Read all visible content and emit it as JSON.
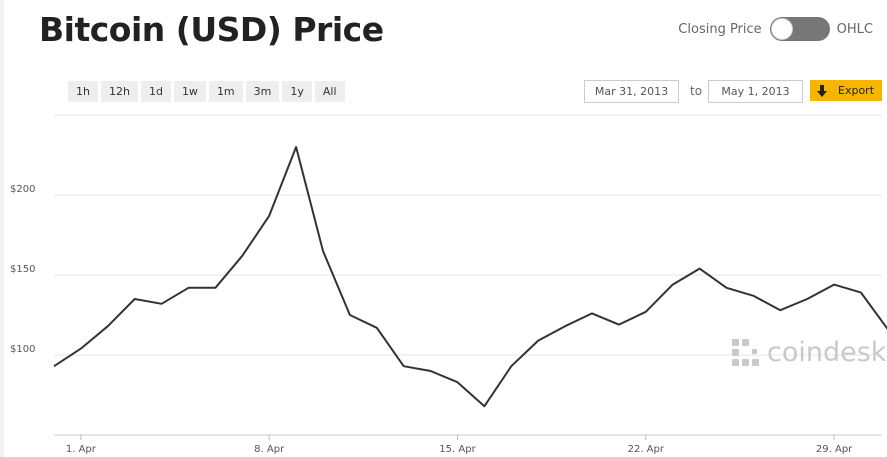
{
  "header": {
    "title": "Bitcoin (USD) Price",
    "toggle_left": "Closing Price",
    "toggle_right": "OHLC"
  },
  "toolbar": {
    "ranges": [
      "1h",
      "12h",
      "1d",
      "1w",
      "1m",
      "3m",
      "1y",
      "All"
    ],
    "from_date": "Mar 31, 2013",
    "to_label": "to",
    "to_date": "May 1, 2013",
    "export_label": "Export"
  },
  "watermark": {
    "text": "coindesk"
  },
  "colors": {
    "line": "#333333",
    "export": "#f7b500",
    "grid": "#e6e6e6"
  },
  "chart_data": {
    "type": "line",
    "x_start": "2013-03-31",
    "x": [
      "Mar 31",
      "Apr 1",
      "Apr 2",
      "Apr 3",
      "Apr 4",
      "Apr 5",
      "Apr 6",
      "Apr 7",
      "Apr 8",
      "Apr 9",
      "Apr 10",
      "Apr 11",
      "Apr 12",
      "Apr 13",
      "Apr 14",
      "Apr 15",
      "Apr 16",
      "Apr 17",
      "Apr 18",
      "Apr 19",
      "Apr 20",
      "Apr 21",
      "Apr 22",
      "Apr 23",
      "Apr 24",
      "Apr 25",
      "Apr 26",
      "Apr 27",
      "Apr 28",
      "Apr 29",
      "Apr 30",
      "May 1"
    ],
    "series": [
      {
        "values": [
          93,
          104,
          118,
          135,
          132,
          142,
          142,
          162,
          187,
          230,
          165,
          125,
          117,
          93,
          90,
          83,
          68,
          93,
          109,
          118,
          126,
          119,
          127,
          144,
          154,
          142,
          137,
          128,
          135,
          144,
          139,
          116
        ]
      }
    ],
    "x_tick_labels": [
      "1. Apr",
      "8. Apr",
      "15. Apr",
      "22. Apr",
      "29. Apr"
    ],
    "y_tick_labels": [
      "$100",
      "$150",
      "$200"
    ],
    "y_ticks": [
      100,
      150,
      200
    ],
    "ylim": [
      50,
      250
    ],
    "grid": true,
    "legend": "none"
  }
}
